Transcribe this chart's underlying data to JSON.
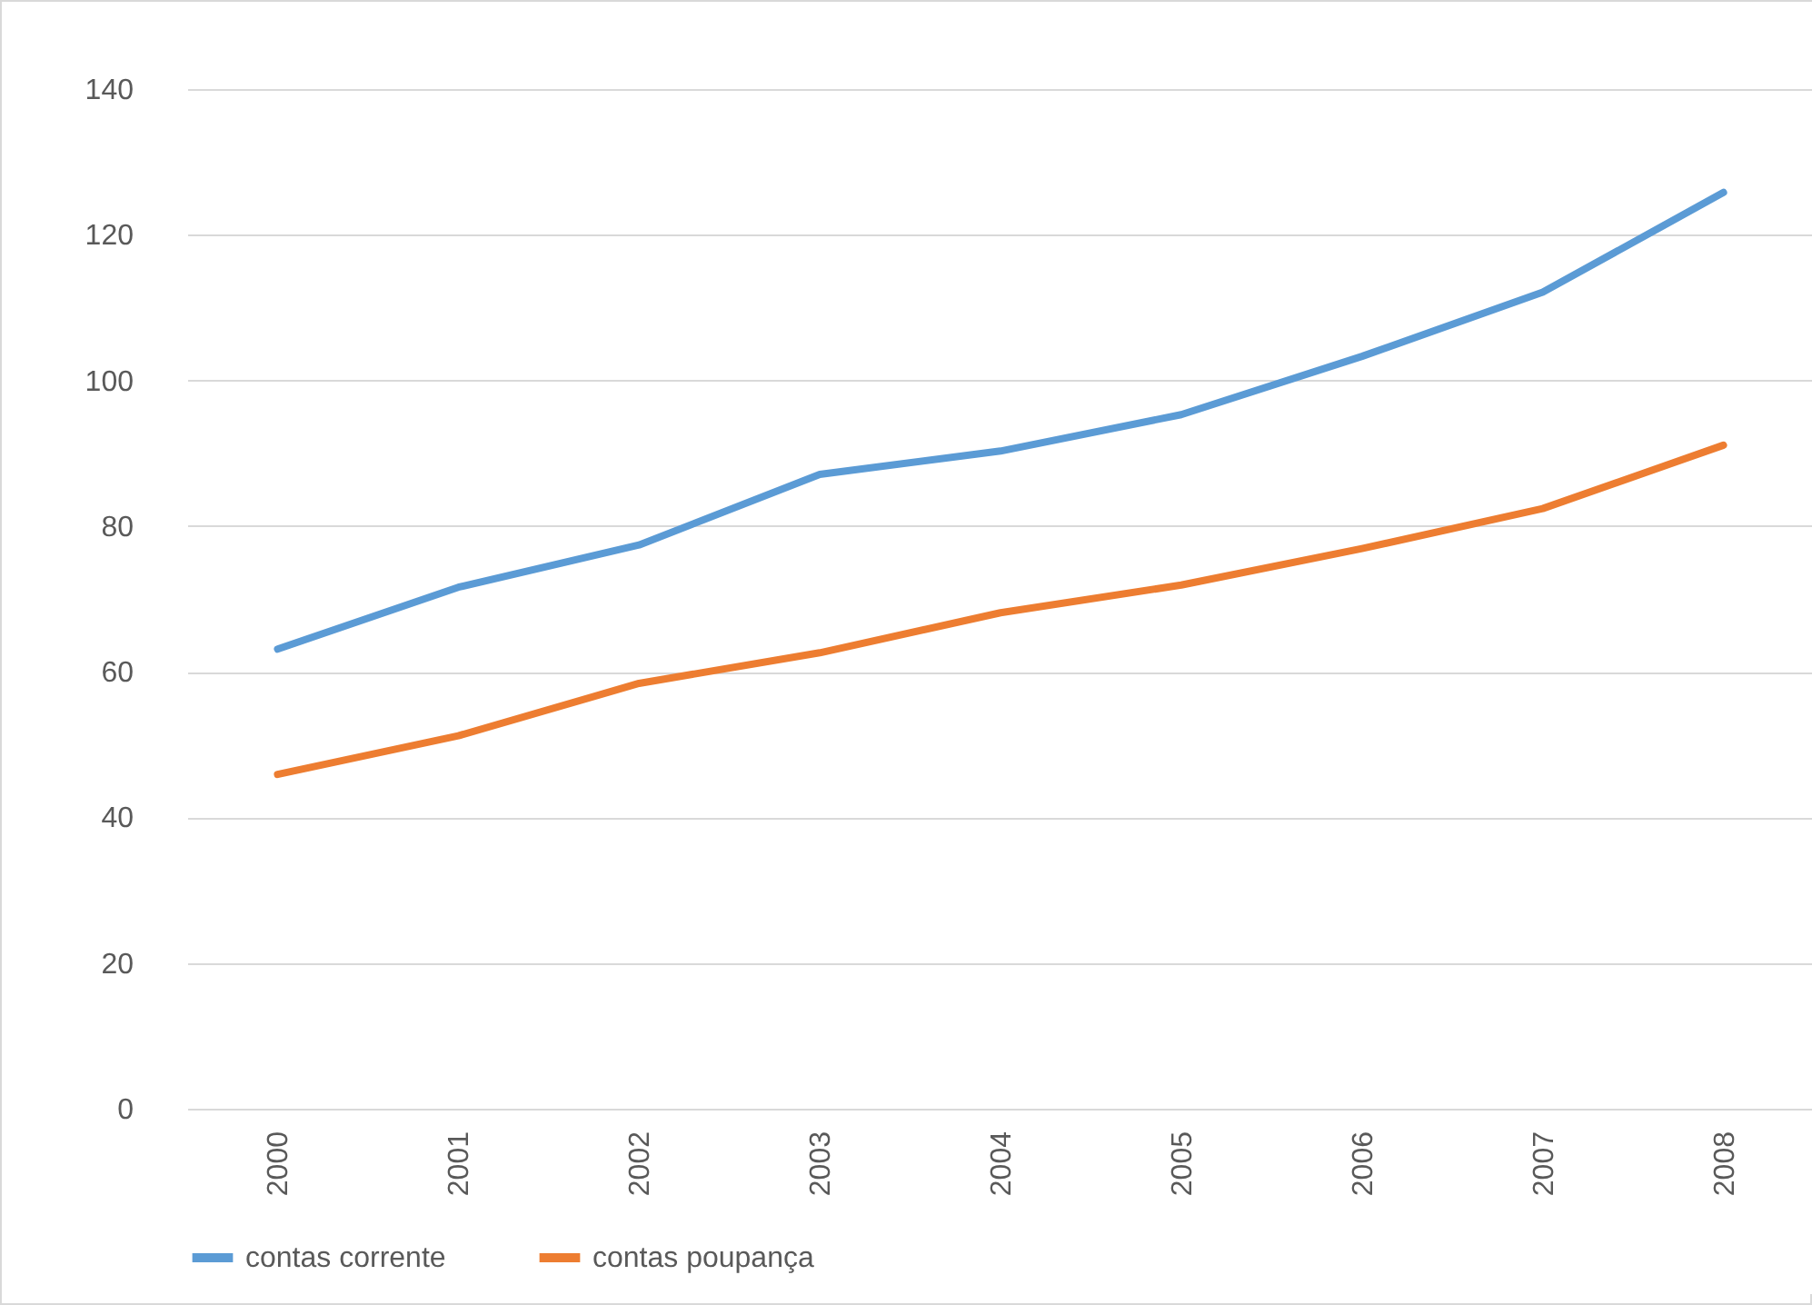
{
  "chart_data": {
    "type": "line",
    "categories": [
      "2000",
      "2001",
      "2002",
      "2003",
      "2004",
      "2005",
      "2006",
      "2007",
      "2008"
    ],
    "series": [
      {
        "name": "contas corrente",
        "color": "#5b9bd5",
        "values": [
          63.1,
          71.6,
          77.4,
          87.1,
          90.3,
          95.3,
          103.3,
          112.1,
          125.8
        ]
      },
      {
        "name": "contas poupança",
        "color": "#ed7d31",
        "values": [
          45.9,
          51.2,
          58.4,
          62.6,
          68.1,
          71.9,
          76.9,
          82.4,
          91.1
        ]
      }
    ],
    "ylim": [
      0,
      140
    ],
    "yticks": [
      0,
      20,
      40,
      60,
      80,
      100,
      120,
      140
    ],
    "grid": "y",
    "legend": "bottom",
    "marker": "none",
    "line_style": "solid"
  }
}
